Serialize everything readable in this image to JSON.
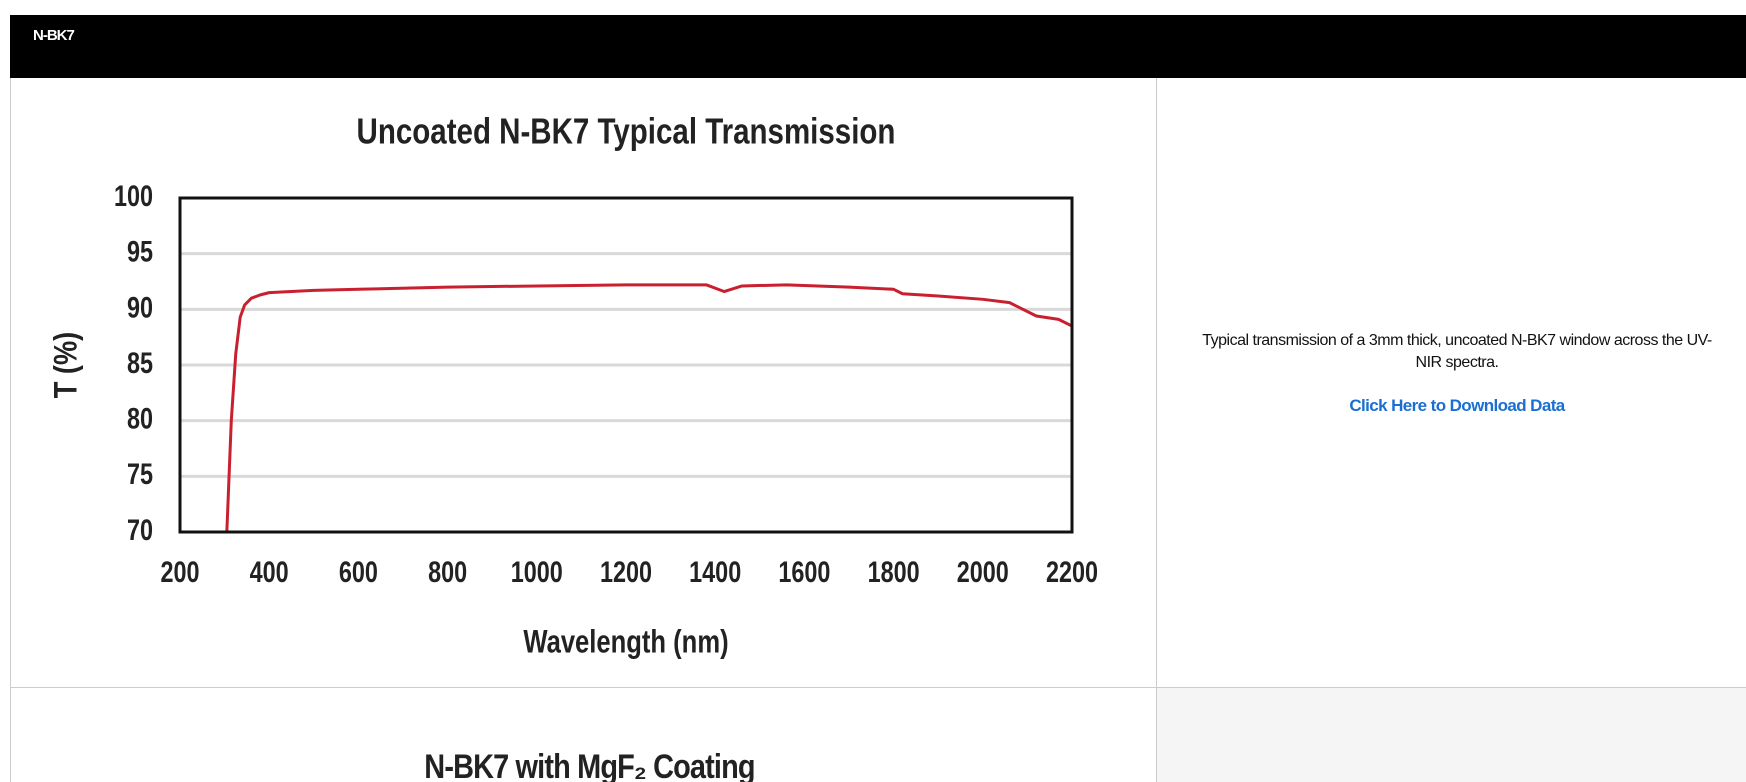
{
  "header": {
    "title": "N-BK7"
  },
  "chart_data": [
    {
      "type": "line",
      "title": "Uncoated N-BK7 Typical Transmission",
      "x_label": "Wavelength (nm)",
      "y_label": "T (%)",
      "xlim": [
        200,
        2200
      ],
      "xticks": [
        200,
        400,
        600,
        800,
        1000,
        1200,
        1400,
        1600,
        1800,
        2000,
        2200
      ],
      "ylim": [
        70,
        100
      ],
      "yticks": [
        70,
        75,
        80,
        85,
        90,
        95,
        100
      ],
      "grid": true,
      "series": [
        {
          "name": "N-BK7",
          "color": "#c8202f",
          "x": [
            305,
            315,
            325,
            335,
            345,
            360,
            380,
            400,
            500,
            600,
            800,
            1000,
            1200,
            1300,
            1380,
            1420,
            1460,
            1560,
            1700,
            1800,
            1820,
            1900,
            2000,
            2060,
            2120,
            2170,
            2200
          ],
          "values": [
            70,
            80,
            86,
            89.3,
            90.4,
            91,
            91.3,
            91.5,
            91.7,
            91.8,
            92,
            92.1,
            92.2,
            92.2,
            92.2,
            91.6,
            92.1,
            92.2,
            92,
            91.8,
            91.4,
            91.2,
            90.9,
            90.6,
            89.4,
            89.1,
            88.5
          ]
        }
      ]
    },
    {
      "type": "line",
      "title": "N-BK7 with MgF₂ Coating"
    }
  ],
  "description": "Typical transmission of a 3mm thick, uncoated N-BK7 window across the UV- NIR spectra.",
  "link": "Click Here to Download Data"
}
